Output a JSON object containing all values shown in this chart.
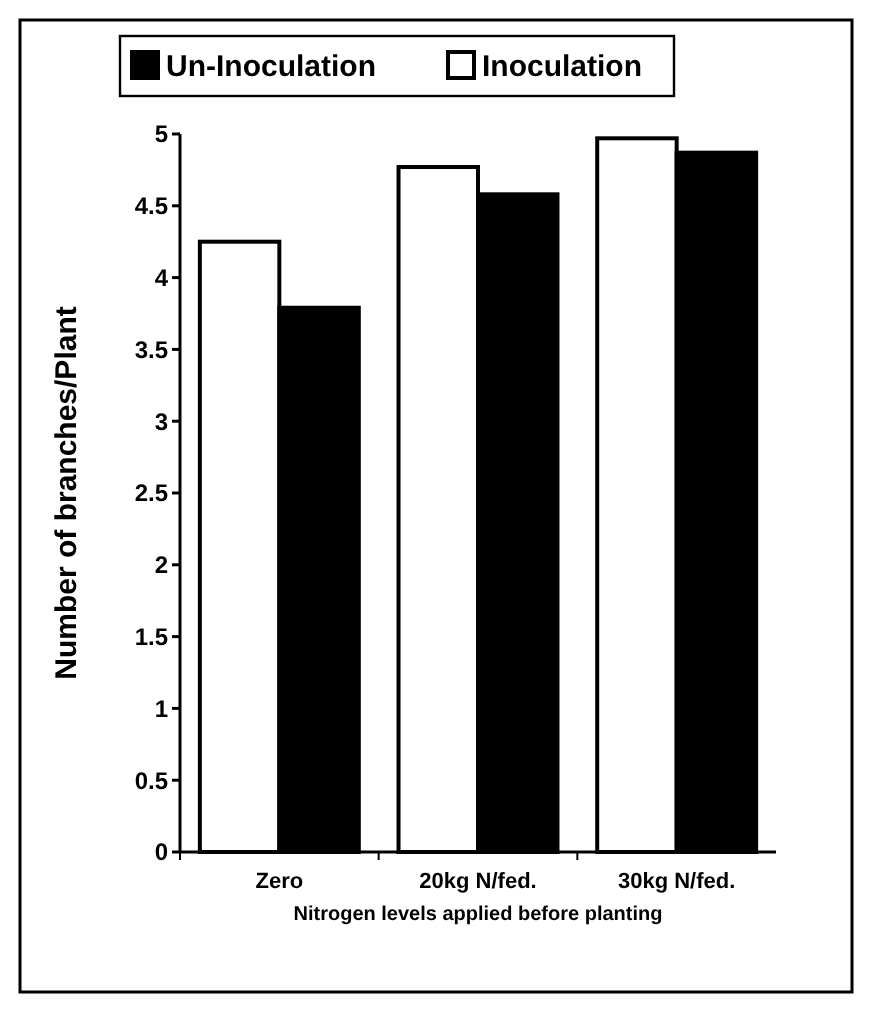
{
  "chart_data": {
    "type": "bar",
    "xlabel": "Nitrogen levels applied before planting",
    "ylabel": "Number of branches/Plant",
    "categories": [
      "Zero",
      "20kg N/fed.",
      "30kg N/fed."
    ],
    "series": [
      {
        "name": "Inoculation",
        "color": "#ffffff",
        "values": [
          4.25,
          4.77,
          4.97
        ]
      },
      {
        "name": "Un-Inoculation",
        "color": "#000000",
        "values": [
          3.79,
          4.58,
          4.87
        ]
      }
    ],
    "ylim": [
      0,
      5
    ],
    "yticks": [
      0,
      0.5,
      1,
      1.5,
      2,
      2.5,
      3,
      3.5,
      4,
      4.5,
      5
    ],
    "legend": "top",
    "grid": false
  }
}
